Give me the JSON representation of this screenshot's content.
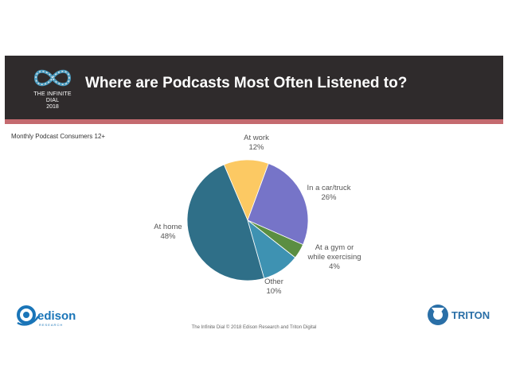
{
  "header": {
    "logo_name": "THE INFINITE DIAL",
    "logo_year": "2018",
    "title": "Where are Podcasts Most Often Listened to?"
  },
  "subtitle": "Monthly Podcast Consumers 12+",
  "footer": "The Infinite Dial   © 2018 Edison Research and Triton Digital",
  "logos": {
    "left": "edison",
    "left_sub": "RESEARCH",
    "right": "TRITON"
  },
  "colors": {
    "header_bg": "#2f2b2c",
    "accent_strip": "#c46a6f",
    "edison_blue": "#1a75b8",
    "triton_blue": "#2a6fa7"
  },
  "chart_data": {
    "type": "pie",
    "title": "Where are Podcasts Most Often Listened to?",
    "start_angle_deg": -23,
    "slices": [
      {
        "name": "At work",
        "value": 12,
        "label_lines": [
          "At work",
          "12%"
        ],
        "color": "#fcc963"
      },
      {
        "name": "In a car/truck",
        "value": 26,
        "label_lines": [
          "In a car/truck",
          "26%"
        ],
        "color": "#7674c8"
      },
      {
        "name": "At a gym or while exercising",
        "value": 4,
        "label_lines": [
          "At a gym or",
          "while exercising",
          "4%"
        ],
        "color": "#5b8e42"
      },
      {
        "name": "Other",
        "value": 10,
        "label_lines": [
          "Other",
          "10%"
        ],
        "color": "#3e92b2"
      },
      {
        "name": "At home",
        "value": 48,
        "label_lines": [
          "At home",
          "48%"
        ],
        "color": "#2f6f88"
      }
    ]
  }
}
